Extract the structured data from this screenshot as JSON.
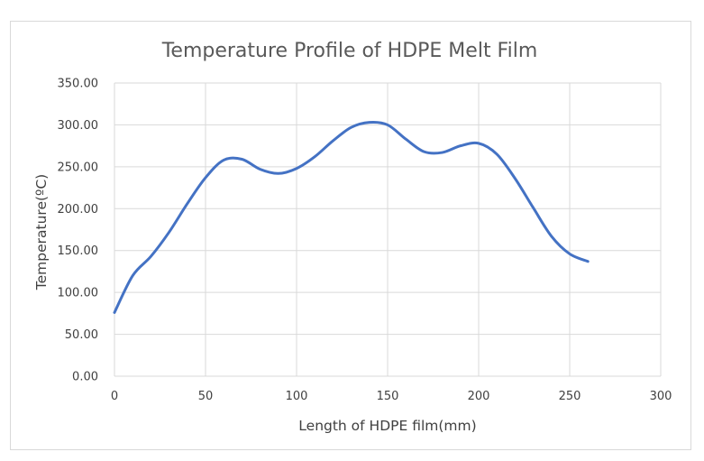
{
  "chart_data": {
    "type": "line",
    "title": "Temperature Profile of HDPE Melt Film",
    "xlabel": "Length of HDPE film(mm)",
    "ylabel": "Temperature(ºC)",
    "xlim": [
      0,
      300
    ],
    "ylim": [
      0,
      350
    ],
    "x_ticks": [
      "0",
      "50",
      "100",
      "150",
      "200",
      "250",
      "300"
    ],
    "y_ticks": [
      "0.00",
      "50.00",
      "100.00",
      "150.00",
      "200.00",
      "250.00",
      "300.00",
      "350.00"
    ],
    "grid": true,
    "legend": "none",
    "smooth": true,
    "series": [
      {
        "color": "#4472c4",
        "x": [
          0,
          10,
          20,
          30,
          40,
          50,
          60,
          70,
          80,
          90,
          100,
          110,
          120,
          130,
          140,
          150,
          160,
          170,
          180,
          190,
          200,
          210,
          220,
          230,
          240,
          250,
          260
        ],
        "y": [
          76,
          120,
          143,
          172,
          206,
          237,
          258,
          259,
          247,
          242,
          248,
          262,
          281,
          297,
          303,
          300,
          283,
          268,
          267,
          275,
          278,
          265,
          236,
          201,
          167,
          146,
          137
        ]
      }
    ]
  }
}
